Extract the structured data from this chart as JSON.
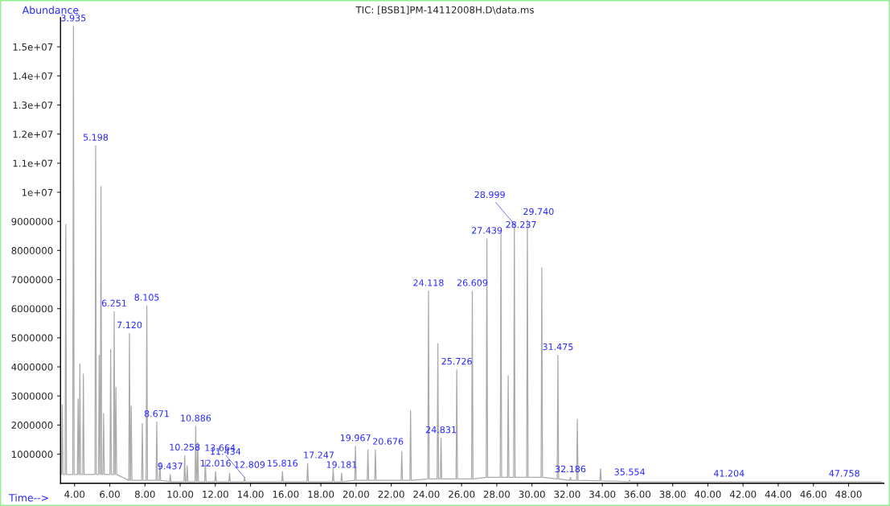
{
  "chart_data": {
    "type": "line",
    "title": "TIC: [BSB1]PM-14112008H.D\\data.ms",
    "xlabel": "Time-->",
    "ylabel": "Abundance",
    "xlim": [
      3.2,
      50
    ],
    "ylim": [
      0,
      16000000
    ],
    "xticks": [
      {
        "value": 4,
        "label": "4.00"
      },
      {
        "value": 6,
        "label": "6.00"
      },
      {
        "value": 8,
        "label": "8.00"
      },
      {
        "value": 10,
        "label": "10.00"
      },
      {
        "value": 12,
        "label": "12.00"
      },
      {
        "value": 14,
        "label": "14.00"
      },
      {
        "value": 16,
        "label": "16.00"
      },
      {
        "value": 18,
        "label": "18.00"
      },
      {
        "value": 20,
        "label": "20.00"
      },
      {
        "value": 22,
        "label": "22.00"
      },
      {
        "value": 24,
        "label": "24.00"
      },
      {
        "value": 26,
        "label": "26.00"
      },
      {
        "value": 28,
        "label": "28.00"
      },
      {
        "value": 30,
        "label": "30.00"
      },
      {
        "value": 32,
        "label": "32.00"
      },
      {
        "value": 34,
        "label": "34.00"
      },
      {
        "value": 36,
        "label": "36.00"
      },
      {
        "value": 38,
        "label": "38.00"
      },
      {
        "value": 40,
        "label": "40.00"
      },
      {
        "value": 42,
        "label": "42.00"
      },
      {
        "value": 44,
        "label": "44.00"
      },
      {
        "value": 46,
        "label": "46.00"
      },
      {
        "value": 48,
        "label": "48.00"
      }
    ],
    "yticks": [
      1000000,
      2000000,
      3000000,
      4000000,
      5000000,
      6000000,
      7000000,
      8000000,
      9000000,
      {
        "value": 10000000,
        "label": "1e+07"
      },
      {
        "value": 11000000,
        "label": "1.1e+07"
      },
      {
        "value": 12000000,
        "label": "1.2e+07"
      },
      {
        "value": 13000000,
        "label": "1.3e+07"
      },
      {
        "value": 14000000,
        "label": "1.4e+07"
      },
      {
        "value": 15000000,
        "label": "1.5e+07"
      }
    ],
    "grid": false,
    "marker": "none",
    "line_style": "solid",
    "series": [
      {
        "color": "#aaaaaa",
        "x": [
          3.26,
          3.3,
          3.34,
          3.46,
          3.5,
          3.54,
          3.895,
          3.935,
          3.975,
          4.16,
          4.2,
          4.24,
          4.26,
          4.3,
          4.34,
          4.46,
          4.5,
          4.54,
          5.158,
          5.198,
          5.238,
          5.36,
          5.4,
          5.44,
          5.46,
          5.5,
          5.54,
          5.61,
          5.65,
          5.69,
          6.01,
          6.05,
          6.09,
          6.211,
          6.251,
          6.291,
          6.31,
          6.35,
          6.39,
          7.08,
          7.12,
          7.16,
          7.18,
          7.22,
          7.26,
          7.81,
          7.85,
          7.89,
          8.065,
          8.105,
          8.145,
          8.631,
          8.671,
          8.711,
          8.81,
          8.85,
          8.89,
          9.397,
          9.437,
          9.477,
          10.218,
          10.258,
          10.298,
          10.36,
          10.4,
          10.44,
          10.846,
          10.886,
          10.926,
          10.96,
          11.0,
          11.04,
          11.394,
          11.434,
          11.474,
          11.976,
          12.016,
          12.056,
          12.769,
          12.809,
          12.849,
          13.624,
          13.664,
          13.704,
          15.776,
          15.816,
          15.856,
          17.207,
          17.247,
          17.287,
          18.66,
          18.7,
          18.74,
          19.141,
          19.181,
          19.221,
          19.927,
          19.967,
          20.007,
          20.636,
          20.676,
          20.716,
          21.06,
          21.1,
          21.14,
          22.56,
          22.6,
          22.64,
          23.06,
          23.1,
          23.14,
          24.078,
          24.118,
          24.158,
          24.61,
          24.65,
          24.69,
          24.791,
          24.831,
          24.871,
          25.686,
          25.726,
          25.766,
          26.569,
          26.609,
          26.649,
          27.399,
          27.439,
          27.479,
          28.197,
          28.237,
          28.277,
          28.61,
          28.65,
          28.69,
          28.959,
          28.999,
          29.039,
          29.7,
          29.74,
          29.78,
          30.52,
          30.56,
          30.6,
          31.435,
          31.475,
          31.515,
          32.146,
          32.186,
          32.226,
          32.54,
          32.58,
          32.62,
          33.86,
          33.9,
          33.94,
          35.514,
          35.554,
          35.594,
          41.164,
          41.204,
          41.244,
          47.718,
          47.758,
          47.798,
          49.9
        ],
        "values": [
          300000,
          2700000,
          300000,
          300000,
          8900000,
          300000,
          300000,
          15700000,
          300000,
          300000,
          2900000,
          300000,
          300000,
          4100000,
          300000,
          300000,
          3750000,
          300000,
          300000,
          11600000,
          300000,
          300000,
          4400000,
          300000,
          300000,
          10200000,
          300000,
          300000,
          2400000,
          300000,
          300000,
          4600000,
          300000,
          300000,
          5900000,
          300000,
          300000,
          3300000,
          300000,
          100000,
          5150000,
          100000,
          100000,
          2650000,
          100000,
          100000,
          2050000,
          100000,
          100000,
          6100000,
          100000,
          100000,
          2100000,
          100000,
          100000,
          700000,
          100000,
          50000,
          300000,
          50000,
          50000,
          950000,
          50000,
          50000,
          600000,
          50000,
          50000,
          1950000,
          50000,
          50000,
          1400000,
          50000,
          50000,
          800000,
          50000,
          50000,
          400000,
          50000,
          50000,
          350000,
          50000,
          50000,
          200000,
          50000,
          50000,
          400000,
          50000,
          50000,
          680000,
          50000,
          50000,
          500000,
          50000,
          50000,
          350000,
          50000,
          100000,
          1270000,
          100000,
          100000,
          1150000,
          100000,
          100000,
          1150000,
          100000,
          100000,
          1100000,
          100000,
          100000,
          2500000,
          100000,
          150000,
          6600000,
          150000,
          150000,
          4800000,
          150000,
          150000,
          1550000,
          150000,
          150000,
          3900000,
          150000,
          150000,
          6600000,
          150000,
          200000,
          8400000,
          200000,
          200000,
          8600000,
          200000,
          200000,
          3700000,
          200000,
          200000,
          8900000,
          200000,
          200000,
          9050000,
          200000,
          200000,
          7400000,
          200000,
          150000,
          4400000,
          150000,
          100000,
          200000,
          100000,
          100000,
          2200000,
          100000,
          80000,
          500000,
          80000,
          50000,
          100000,
          50000,
          50000,
          50000,
          50000,
          50000,
          50000,
          50000,
          50000
        ]
      }
    ],
    "annotations": [
      {
        "text": "3.935",
        "x": 3.935,
        "y": 15700000
      },
      {
        "text": "5.198",
        "x": 5.198,
        "y": 11600000
      },
      {
        "text": "6.251",
        "x": 6.251,
        "y": 5900000
      },
      {
        "text": "7.120",
        "x": 7.12,
        "y": 5150000
      },
      {
        "text": "8.105",
        "x": 8.105,
        "y": 6100000
      },
      {
        "text": "8.671",
        "x": 8.671,
        "y": 2100000
      },
      {
        "text": "9.437",
        "x": 9.437,
        "y": 300000
      },
      {
        "text": "10.258",
        "x": 10.258,
        "y": 950000
      },
      {
        "text": "10.886",
        "x": 10.886,
        "y": 1950000
      },
      {
        "text": "11.434",
        "x": 11.434,
        "y": 800000
      },
      {
        "text": "12.016",
        "x": 12.016,
        "y": 400000
      },
      {
        "text": "12.809",
        "x": 12.809,
        "y": 350000
      },
      {
        "text": "13.664",
        "x": 13.664,
        "y": 200000
      },
      {
        "text": "15.816",
        "x": 15.816,
        "y": 400000
      },
      {
        "text": "17.247",
        "x": 17.247,
        "y": 680000
      },
      {
        "text": "19.181",
        "x": 19.181,
        "y": 350000
      },
      {
        "text": "19.967",
        "x": 19.967,
        "y": 1270000
      },
      {
        "text": "20.676",
        "x": 20.676,
        "y": 1150000
      },
      {
        "text": "24.118",
        "x": 24.118,
        "y": 6600000
      },
      {
        "text": "24.831",
        "x": 24.831,
        "y": 1550000
      },
      {
        "text": "25.726",
        "x": 25.726,
        "y": 3900000
      },
      {
        "text": "26.609",
        "x": 26.609,
        "y": 6600000
      },
      {
        "text": "27.439",
        "x": 27.439,
        "y": 8400000
      },
      {
        "text": "28.237",
        "x": 28.237,
        "y": 8600000
      },
      {
        "text": "28.999",
        "x": 28.999,
        "y": 8900000
      },
      {
        "text": "29.740",
        "x": 29.74,
        "y": 9050000
      },
      {
        "text": "31.475",
        "x": 31.475,
        "y": 4400000
      },
      {
        "text": "32.186",
        "x": 32.186,
        "y": 200000
      },
      {
        "text": "35.554",
        "x": 35.554,
        "y": 100000
      },
      {
        "text": "41.204",
        "x": 41.204,
        "y": 50000
      },
      {
        "text": "47.758",
        "x": 47.758,
        "y": 50000
      }
    ]
  }
}
